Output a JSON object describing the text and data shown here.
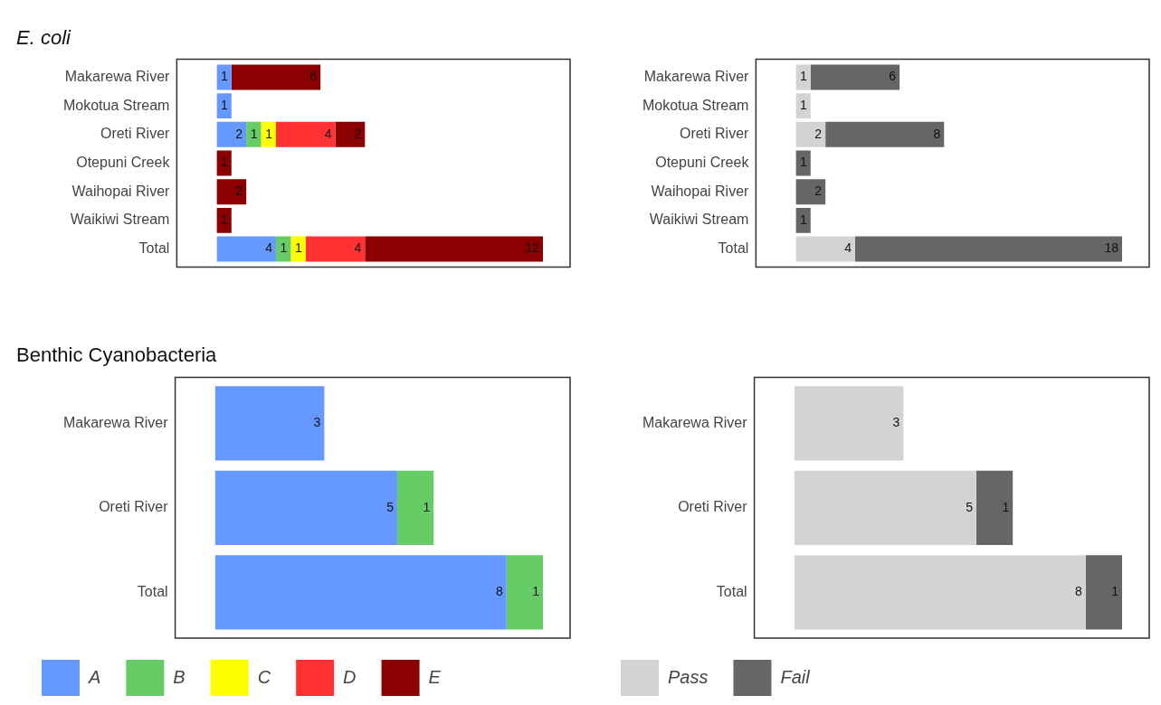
{
  "chart_data": [
    {
      "type": "bar",
      "title": "E. coli",
      "orientation": "horizontal",
      "stacked": true,
      "data_labels": true,
      "grid": false,
      "legend": false,
      "tick_labels": "y",
      "categories": [
        "Makarewa River",
        "Mokotua Stream",
        "Oreti River",
        "Otepuni Creek",
        "Waihopai River",
        "Waikiwi Stream",
        "Total"
      ],
      "series": [
        {
          "color": "#6699ff",
          "values": [
            1,
            1,
            2,
            null,
            null,
            null,
            4
          ]
        },
        {
          "color": "#66cc66",
          "values": [
            null,
            null,
            1,
            null,
            null,
            null,
            1
          ]
        },
        {
          "color": "#ffff00",
          "values": [
            null,
            null,
            1,
            null,
            null,
            null,
            1
          ]
        },
        {
          "color": "#ff3333",
          "values": [
            null,
            null,
            4,
            null,
            null,
            null,
            4
          ]
        },
        {
          "color": "#8b0000",
          "values": [
            6,
            null,
            2,
            1,
            2,
            1,
            12
          ]
        }
      ]
    },
    {
      "type": "bar",
      "orientation": "horizontal",
      "stacked": true,
      "data_labels": true,
      "grid": false,
      "legend": false,
      "tick_labels": "y",
      "categories": [
        "Makarewa River",
        "Mokotua Stream",
        "Oreti River",
        "Otepuni Creek",
        "Waihopai River",
        "Waikiwi Stream",
        "Total"
      ],
      "series": [
        {
          "color": "#d3d3d3",
          "values": [
            1,
            1,
            2,
            null,
            null,
            null,
            4
          ]
        },
        {
          "color": "#666666",
          "values": [
            6,
            null,
            8,
            1,
            2,
            1,
            18
          ]
        }
      ]
    },
    {
      "type": "bar",
      "title": "Benthic Cyanobacteria",
      "orientation": "horizontal",
      "stacked": true,
      "data_labels": true,
      "grid": false,
      "legend": "bottom",
      "tick_labels": "y",
      "categories": [
        "Makarewa River",
        "Oreti River",
        "Total"
      ],
      "series": [
        {
          "name": "A",
          "color": "#6699ff",
          "values": [
            3,
            5,
            8
          ]
        },
        {
          "name": "B",
          "color": "#66cc66",
          "values": [
            null,
            1,
            1
          ]
        },
        {
          "name": "C",
          "color": "#ffff00",
          "values": [
            null,
            null,
            null
          ]
        },
        {
          "name": "D",
          "color": "#ff3333",
          "values": [
            null,
            null,
            null
          ]
        },
        {
          "name": "E",
          "color": "#8b0000",
          "values": [
            null,
            null,
            null
          ]
        }
      ]
    },
    {
      "type": "bar",
      "orientation": "horizontal",
      "stacked": true,
      "data_labels": true,
      "grid": false,
      "legend": "bottom",
      "tick_labels": "y",
      "categories": [
        "Makarewa River",
        "Oreti River",
        "Total"
      ],
      "series": [
        {
          "name": "Pass",
          "color": "#d3d3d3",
          "values": [
            3,
            5,
            8
          ]
        },
        {
          "name": "Fail",
          "color": "#666666",
          "values": [
            null,
            1,
            1
          ]
        }
      ]
    }
  ]
}
